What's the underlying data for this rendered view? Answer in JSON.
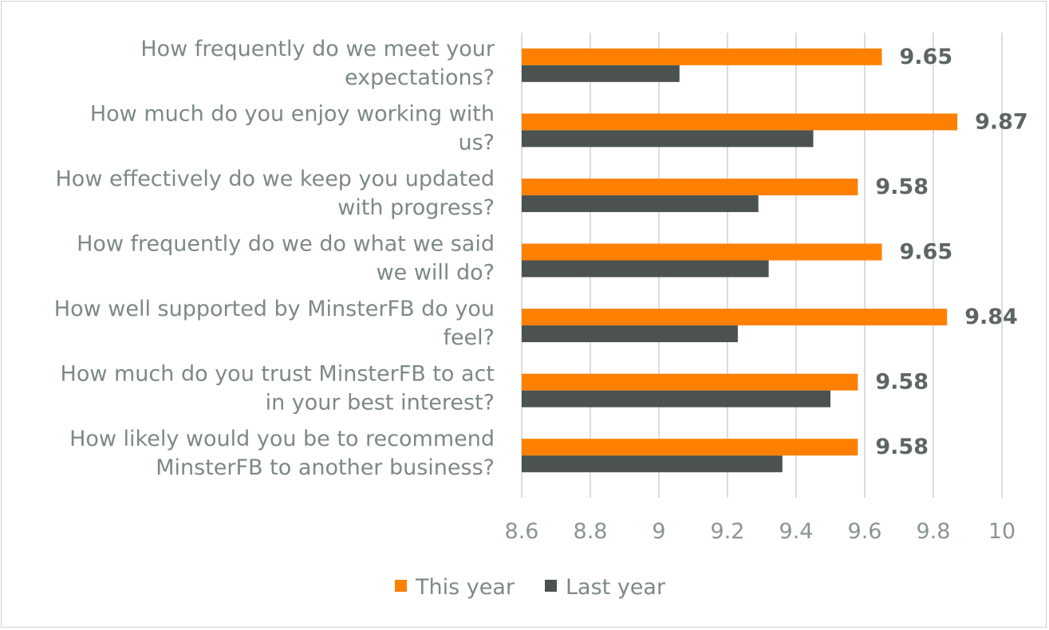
{
  "chart_data": {
    "type": "bar",
    "orientation": "horizontal",
    "categories": [
      [
        "How frequently do we meet your",
        "expectations?"
      ],
      [
        "How much do you enjoy working with",
        "us?"
      ],
      [
        "How effectively do we keep you updated",
        "with progress?"
      ],
      [
        "How frequently do we do what we said",
        "we will do?"
      ],
      [
        "How well supported by MinsterFB do you",
        "feel?"
      ],
      [
        "How much do you trust MinsterFB to act",
        "in your best interest?"
      ],
      [
        "How likely would you be to recommend",
        "MinsterFB to another business?"
      ]
    ],
    "series": [
      {
        "name": "This year",
        "color": "#ff8000",
        "values": [
          9.65,
          9.87,
          9.58,
          9.65,
          9.84,
          9.58,
          9.58
        ],
        "data_labels": [
          "9.65",
          "9.87",
          "9.58",
          "9.65",
          "9.84",
          "9.58",
          "9.58"
        ]
      },
      {
        "name": "Last year",
        "color": "#4b524f",
        "values": [
          9.06,
          9.45,
          9.29,
          9.32,
          9.23,
          9.5,
          9.36
        ]
      }
    ],
    "xlim": [
      8.6,
      10
    ],
    "x_ticks": [
      "8.6",
      "8.8",
      "9",
      "9.2",
      "9.4",
      "9.6",
      "9.8",
      "10"
    ],
    "grid": "vertical",
    "legend": "bottom",
    "title": "",
    "xlabel": "",
    "ylabel": ""
  }
}
